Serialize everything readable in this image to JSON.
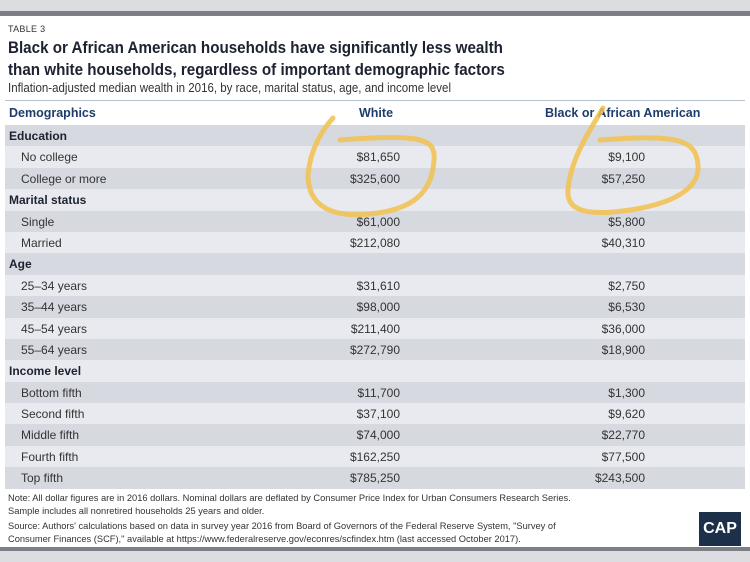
{
  "table_label": "TABLE 3",
  "title_line1": "Black or African American households have significantly less wealth",
  "title_line2": "than white households, regardless of important demographic factors",
  "subtitle": "Inflation-adjusted median wealth in 2016, by race, marital status, age, and income level",
  "headers": {
    "demographics": "Demographics",
    "white": "White",
    "black": "Black or African American"
  },
  "rows": [
    {
      "label": "Education",
      "section": true
    },
    {
      "label": "No college",
      "white": "$81,650",
      "black": "$9,100"
    },
    {
      "label": "College or more",
      "white": "$325,600",
      "black": "$57,250"
    },
    {
      "label": "Marital status",
      "section": true
    },
    {
      "label": "Single",
      "white": "$61,000",
      "black": "$5,800"
    },
    {
      "label": "Married",
      "white": "$212,080",
      "black": "$40,310"
    },
    {
      "label": "Age",
      "section": true
    },
    {
      "label": "25–34 years",
      "white": "$31,610",
      "black": "$2,750"
    },
    {
      "label": "35–44 years",
      "white": "$98,000",
      "black": "$6,530"
    },
    {
      "label": "45–54 years",
      "white": "$211,400",
      "black": "$36,000"
    },
    {
      "label": "55–64 years",
      "white": "$272,790",
      "black": "$18,900"
    },
    {
      "label": "Income level",
      "section": true
    },
    {
      "label": "Bottom fifth",
      "white": "$11,700",
      "black": "$1,300"
    },
    {
      "label": "Second fifth",
      "white": "$37,100",
      "black": "$9,620"
    },
    {
      "label": "Middle fifth",
      "white": "$74,000",
      "black": "$22,770"
    },
    {
      "label": "Fourth fifth",
      "white": "$162,250",
      "black": "$77,500"
    },
    {
      "label": "Top fifth",
      "white": "$785,250",
      "black": "$243,500"
    }
  ],
  "note1": "Note: All dollar figures are in 2016 dollars. Nominal dollars are deflated by Consumer Price Index for Urban Consumers Research Series.",
  "note2": "Sample includes all nonretired households 25 years and older.",
  "source1": "Source: Authors' calculations based on data in survey year 2016 from Board of Governors of the Federal Reserve System, \"Survey of",
  "source2": "Consumer Finances (SCF),\" available at https://www.federalreserve.gov/econres/scfindex.htm (last accessed October 2017).",
  "logo": "CAP",
  "annotation_color": "#f2c14e"
}
